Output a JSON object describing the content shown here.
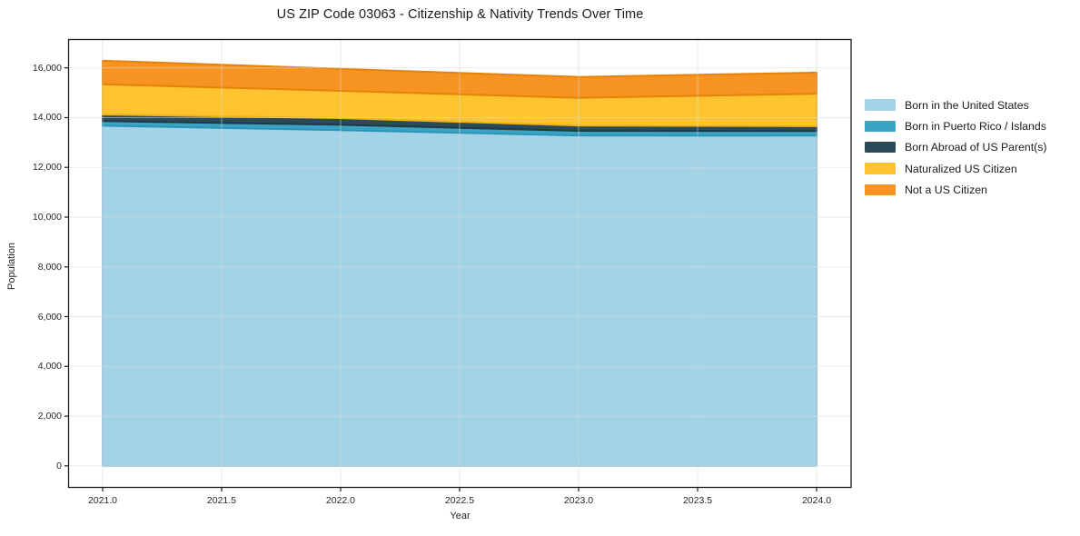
{
  "chart_data": {
    "type": "area",
    "stacked": true,
    "title": "US ZIP Code 03063 - Citizenship & Nativity Trends Over Time",
    "xlabel": "Year",
    "ylabel": "Population",
    "x": [
      2021.0,
      2022.0,
      2023.0,
      2024.0
    ],
    "series": [
      {
        "name": "Born in the United States",
        "values": [
          13675,
          13495,
          13285,
          13275
        ],
        "color": "#a2d3e7",
        "edge_color": "#8dc4da"
      },
      {
        "name": "Born in Puerto Rico / Islands",
        "values": [
          185,
          220,
          185,
          185
        ],
        "color": "#3aa4c5",
        "edge_color": "#2e94b5"
      },
      {
        "name": "Born Abroad of US Parent(s)",
        "values": [
          265,
          265,
          210,
          195
        ],
        "color": "#2b4a57",
        "edge_color": "#203944"
      },
      {
        "name": "Naturalized US Citizen",
        "values": [
          1215,
          1095,
          1120,
          1305
        ],
        "color": "#fdc42f",
        "edge_color": "#f0b219"
      },
      {
        "name": "Not a US Citizen",
        "values": [
          950,
          885,
          835,
          850
        ],
        "color": "#f79320",
        "edge_color": "#e58309"
      }
    ],
    "x_ticks": [
      2021.0,
      2021.5,
      2022.0,
      2022.5,
      2023.0,
      2023.5,
      2024.0
    ],
    "x_tick_labels": [
      "2021.0",
      "2021.5",
      "2022.0",
      "2022.5",
      "2023.0",
      "2023.5",
      "2024.0"
    ],
    "y_ticks": [
      0,
      2000,
      4000,
      6000,
      8000,
      10000,
      12000,
      14000,
      16000
    ],
    "y_tick_labels": [
      "0",
      "2,000",
      "4,000",
      "6,000",
      "8,000",
      "10,000",
      "12,000",
      "14,000",
      "16,000"
    ],
    "xlim": [
      2020.857,
      2024.145
    ],
    "ylim": [
      -865,
      17140
    ],
    "grid": true,
    "legend_position": "outside-right",
    "colors": {
      "spine": "#1a1a1a",
      "grid": "#d9d9d9",
      "plot_background": "#ffffff",
      "figure_background": "#ffffff",
      "tick_text": "#262626"
    }
  }
}
